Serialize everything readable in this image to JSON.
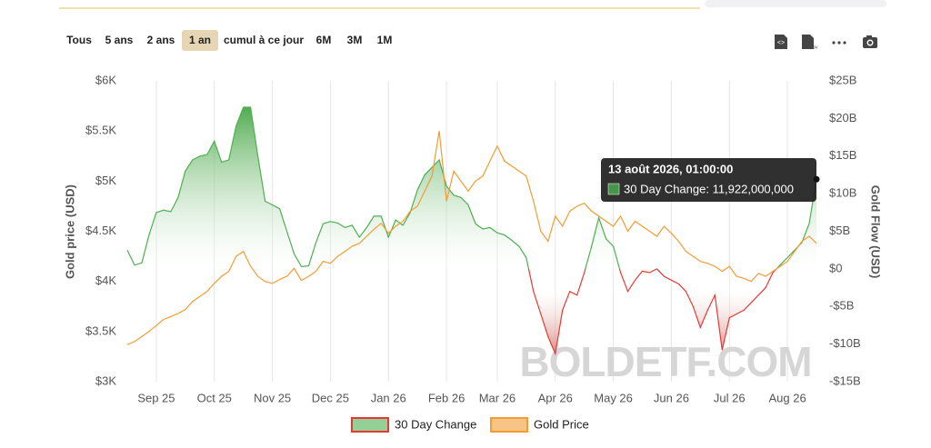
{
  "range_buttons": [
    "Tous",
    "5 ans",
    "2 ans",
    "1 an",
    "cumul à ce jour",
    "6M",
    "3M",
    "1M"
  ],
  "active_range": 3,
  "chart_data": {
    "type": "line",
    "watermark": "BOLDETF.COM",
    "y_label": "Gold price (USD)",
    "y2_label": "Gold Flow (USD)",
    "categories": [
      null,
      null,
      null,
      null,
      "Sep 25",
      null,
      null,
      null,
      null,
      null,
      null,
      null,
      "Oct 25",
      null,
      null,
      null,
      null,
      null,
      null,
      null,
      "Nov 25",
      null,
      null,
      null,
      null,
      null,
      null,
      null,
      "Dec 25",
      null,
      null,
      null,
      null,
      null,
      null,
      null,
      "Jan 26",
      null,
      null,
      null,
      null,
      null,
      null,
      null,
      "Feb 26",
      null,
      null,
      null,
      null,
      null,
      null,
      "Mar 26",
      null,
      null,
      null,
      null,
      null,
      null,
      null,
      "Apr 26",
      null,
      null,
      null,
      null,
      null,
      null,
      null,
      "May 26",
      null,
      null,
      null,
      null,
      null,
      null,
      null,
      "Jun 26",
      null,
      null,
      null,
      null,
      null,
      null,
      null,
      "Jul 26",
      null,
      null,
      null,
      null,
      null,
      null,
      null,
      "Aug 26",
      null,
      null,
      null,
      null
    ],
    "ylim": [
      3000,
      6000
    ],
    "yticks": [
      {
        "value": 3000,
        "label": "$3K"
      },
      {
        "value": 3500,
        "label": "$3.5K"
      },
      {
        "value": 4000,
        "label": "$4K"
      },
      {
        "value": 4500,
        "label": "$4.5K"
      },
      {
        "value": 5000,
        "label": "$5K"
      },
      {
        "value": 5500,
        "label": "$5.5K"
      },
      {
        "value": 6000,
        "label": "$6K"
      }
    ],
    "y2lim": [
      -15,
      25
    ],
    "y2ticks": [
      {
        "value": -15,
        "label": "-$15B"
      },
      {
        "value": -10,
        "label": "-$10B"
      },
      {
        "value": -5,
        "label": "-$5B"
      },
      {
        "value": 0,
        "label": "$0"
      },
      {
        "value": 5,
        "label": "$5B"
      },
      {
        "value": 10,
        "label": "$10B"
      },
      {
        "value": 15,
        "label": "$15B"
      },
      {
        "value": 20,
        "label": "$20B"
      },
      {
        "value": 25,
        "label": "$25B"
      }
    ],
    "grid": "x",
    "series": [
      {
        "name": "30 Day Change",
        "axis": "y2",
        "color": "#4caf50",
        "negative_color": "#e53935",
        "area": true,
        "values": [
          2.5,
          0.5,
          0.8,
          4.5,
          7.5,
          7.8,
          7.6,
          9.5,
          13,
          14.5,
          15,
          15.2,
          17,
          14.2,
          14.5,
          19,
          21.5,
          21.5,
          15,
          9,
          8.5,
          8,
          5,
          2,
          0.3,
          0.4,
          3.5,
          6,
          6.3,
          6.1,
          5.5,
          5.8,
          4.2,
          5.5,
          7,
          7,
          4.2,
          6.5,
          5.8,
          7.5,
          10.5,
          12.5,
          13.5,
          14.5,
          11,
          9.8,
          9.5,
          8.5,
          6,
          5.3,
          5.5,
          4.8,
          4.5,
          3.8,
          3,
          1.5,
          -3,
          -6,
          -9,
          -11.3,
          -5.5,
          -3,
          -3.5,
          -0.5,
          3,
          6.8,
          4,
          3,
          -0.5,
          -3,
          -1.5,
          -0.3,
          -0.5,
          0,
          -1,
          -1.5,
          -2,
          -3,
          -5,
          -7.8,
          -5.5,
          -3.5,
          -10.8,
          -6.5,
          -6,
          -5.5,
          -4.5,
          -3.5,
          -2.5,
          -0.5,
          0.5,
          1.5,
          2.5,
          3.5,
          6,
          11.922
        ]
      },
      {
        "name": "Gold Price",
        "axis": "y",
        "color": "#f39c34",
        "values": [
          3370,
          3400,
          3450,
          3500,
          3560,
          3620,
          3650,
          3680,
          3720,
          3800,
          3850,
          3900,
          3980,
          4050,
          4100,
          4250,
          4300,
          4150,
          4050,
          4000,
          3980,
          4020,
          4050,
          4130,
          4010,
          4050,
          4100,
          4200,
          4180,
          4250,
          4300,
          4350,
          4380,
          4450,
          4520,
          4580,
          4480,
          4550,
          4600,
          4700,
          4750,
          4900,
          5050,
          5500,
          4800,
          5100,
          5000,
          4900,
          5000,
          5050,
          5200,
          5350,
          5200,
          5150,
          5100,
          5050,
          4800,
          4500,
          4400,
          4650,
          4550,
          4700,
          4750,
          4780,
          4700,
          4650,
          4600,
          4550,
          4650,
          4500,
          4600,
          4550,
          4500,
          4450,
          4550,
          4480,
          4400,
          4300,
          4250,
          4200,
          4180,
          4150,
          4100,
          4150,
          4050,
          4030,
          4000,
          4080,
          4050,
          4100,
          4150,
          4200,
          4300,
          4400,
          4450,
          4380
        ]
      }
    ],
    "tooltip": {
      "title": "13 août 2026, 01:00:00",
      "text": "30 Day Change: 11,922,000,000",
      "series": 0,
      "index": 95
    }
  }
}
